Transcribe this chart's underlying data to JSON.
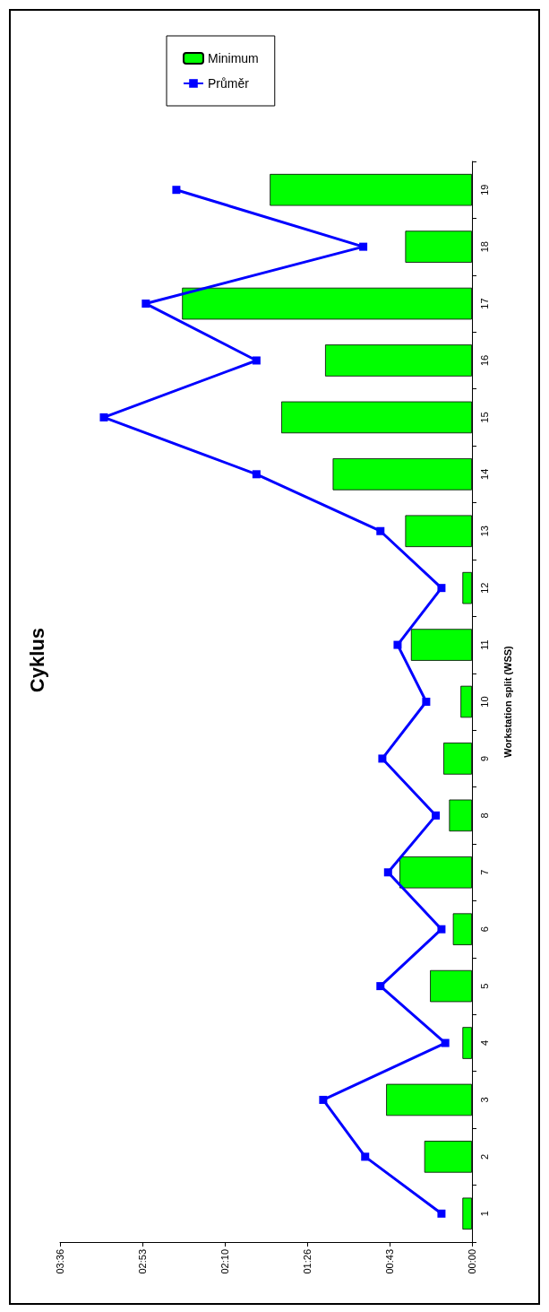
{
  "chart_data": {
    "type": "bar",
    "orientation": "horizontal",
    "title": "Cyklus",
    "ylabel": "Workstation split (WSS)",
    "categories": [
      "19",
      "18",
      "17",
      "16",
      "15",
      "14",
      "13",
      "12",
      "11",
      "10",
      "9",
      "8",
      "7",
      "6",
      "5",
      "4",
      "3",
      "2",
      "1"
    ],
    "series": [
      {
        "name": "Minimum",
        "color": "#00ff00",
        "values": [
          106,
          35,
          152,
          77,
          100,
          73,
          35,
          5,
          32,
          6,
          15,
          12,
          38,
          10,
          22,
          5,
          45,
          25,
          5
        ]
      },
      {
        "name": "Průměr",
        "type": "line",
        "color": "#0000ff",
        "marker": "square",
        "values": [
          155,
          57,
          171,
          113,
          193,
          113,
          48,
          16,
          39,
          24,
          47,
          19,
          44,
          16,
          48,
          14,
          78,
          56,
          16
        ]
      }
    ],
    "xlim": [
      216,
      0
    ],
    "xticks": [
      {
        "value": 0,
        "label": "00:00"
      },
      {
        "value": 43.2,
        "label": "00:43"
      },
      {
        "value": 86.4,
        "label": "01:26"
      },
      {
        "value": 129.6,
        "label": "02:10"
      },
      {
        "value": 172.8,
        "label": "02:53"
      },
      {
        "value": 216,
        "label": "03:36"
      }
    ],
    "grid": false,
    "legend": "top"
  }
}
